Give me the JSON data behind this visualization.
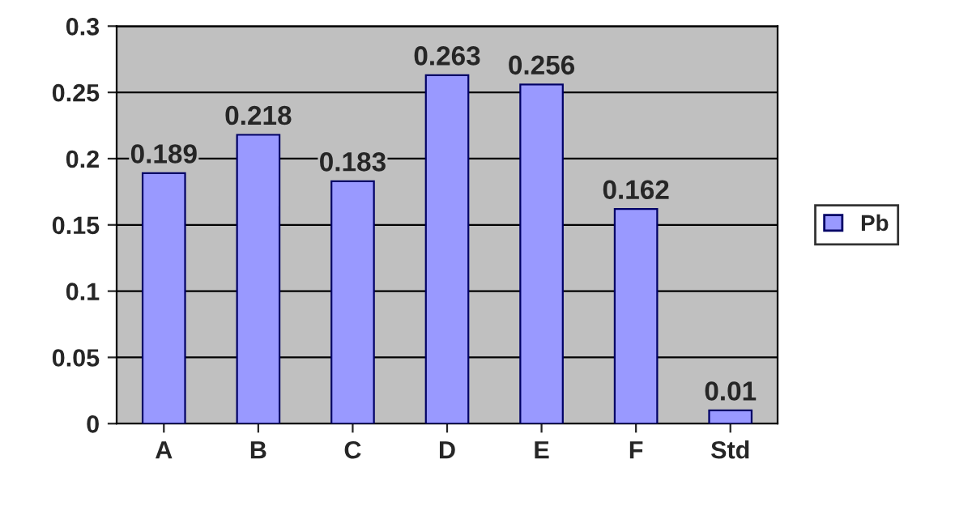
{
  "chart_data": {
    "type": "bar",
    "categories": [
      "A",
      "B",
      "C",
      "D",
      "E",
      "F",
      "Std"
    ],
    "series": [
      {
        "name": "Pb",
        "color": "#9999ff",
        "values": [
          0.189,
          0.218,
          0.183,
          0.263,
          0.256,
          0.162,
          0.01
        ]
      }
    ],
    "ylim": [
      0,
      0.3
    ],
    "yticks": [
      0,
      0.05,
      0.1,
      0.15,
      0.2,
      0.25,
      0.3
    ],
    "grid": "y",
    "legend": "right",
    "data_labels": true
  }
}
